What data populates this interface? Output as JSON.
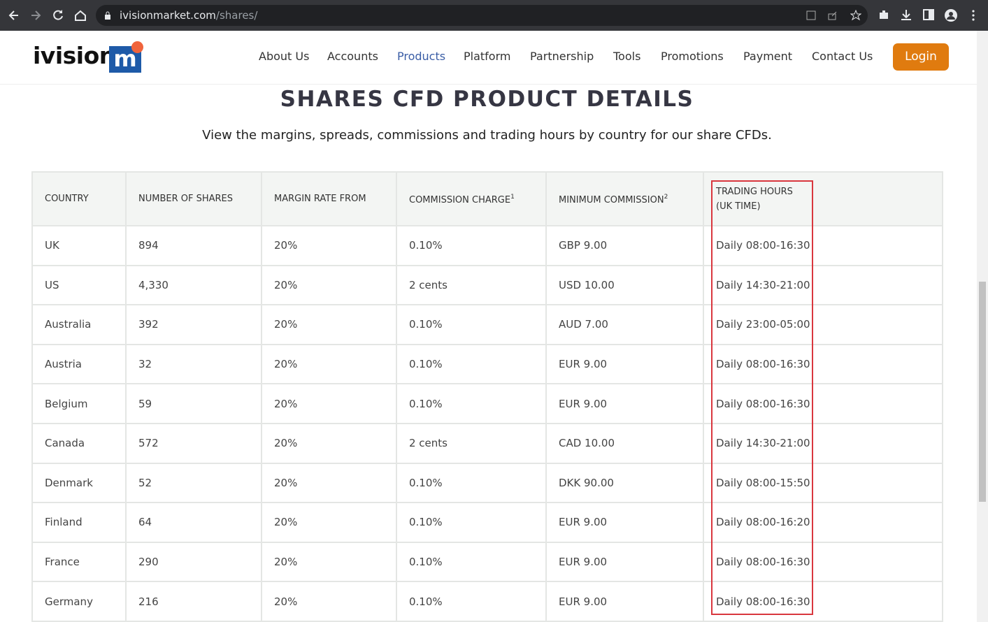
{
  "browser": {
    "url_host": "ivisionmarket.com",
    "url_path": "/shares/"
  },
  "header": {
    "logo_text": "ivision",
    "logo_mark": "m",
    "nav": [
      "About Us",
      "Accounts",
      "Products",
      "Platform",
      "Partnership",
      "Tools",
      "Promotions",
      "Payment",
      "Contact Us"
    ],
    "login": "Login"
  },
  "content": {
    "title": "SHARES CFD PRODUCT DETAILS",
    "subtitle": "View the margins, spreads, commissions and trading hours by country for our share CFDs."
  },
  "table": {
    "headers": [
      {
        "lines": [
          "COUNTRY"
        ]
      },
      {
        "lines": [
          "NUMBER OF SHARES"
        ]
      },
      {
        "lines": [
          "MARGIN RATE FROM"
        ]
      },
      {
        "lines": [
          "COMMISSION CHARGE"
        ],
        "sup": "1"
      },
      {
        "lines": [
          "MINIMUM COMMISSION"
        ],
        "sup": "2"
      },
      {
        "lines": [
          "TRADING HOURS",
          "(UK TIME)"
        ]
      }
    ],
    "rows": [
      [
        "UK",
        "894",
        "20%",
        "0.10%",
        "GBP 9.00",
        "Daily 08:00-16:30"
      ],
      [
        "US",
        "4,330",
        "20%",
        "2 cents",
        "USD 10.00",
        "Daily 14:30-21:00"
      ],
      [
        "Australia",
        "392",
        "20%",
        "0.10%",
        "AUD 7.00",
        "Daily 23:00-05:00"
      ],
      [
        "Austria",
        "32",
        "20%",
        "0.10%",
        "EUR 9.00",
        "Daily 08:00-16:30"
      ],
      [
        "Belgium",
        "59",
        "20%",
        "0.10%",
        "EUR 9.00",
        "Daily 08:00-16:30"
      ],
      [
        "Canada",
        "572",
        "20%",
        "2 cents",
        "CAD 10.00",
        "Daily 14:30-21:00"
      ],
      [
        "Denmark",
        "52",
        "20%",
        "0.10%",
        "DKK 90.00",
        "Daily 08:00-15:50"
      ],
      [
        "Finland",
        "64",
        "20%",
        "0.10%",
        "EUR 9.00",
        "Daily 08:00-16:20"
      ],
      [
        "France",
        "290",
        "20%",
        "0.10%",
        "EUR 9.00",
        "Daily 08:00-16:30"
      ],
      [
        "Germany",
        "216",
        "20%",
        "0.10%",
        "EUR 9.00",
        "Daily 08:00-16:30"
      ]
    ]
  }
}
